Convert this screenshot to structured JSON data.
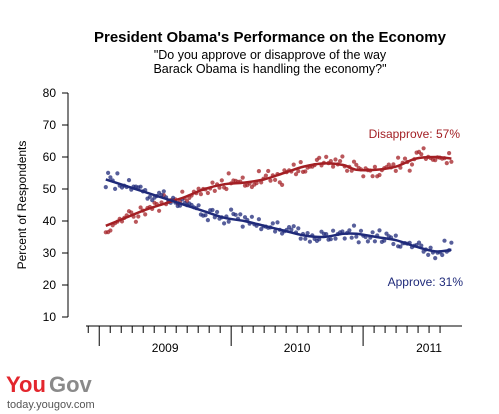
{
  "chart_data": {
    "type": "scatter",
    "title": "President Obama's Performance on the Economy",
    "subtitle_lines": [
      "\"Do you approve or disapprove of the way",
      "Barack Obama is handling the economy?\""
    ],
    "ylabel": "Percent of Respondents",
    "xlabel": "",
    "ylim": [
      10,
      80
    ],
    "yticks": [
      10,
      20,
      30,
      40,
      50,
      60,
      70,
      80
    ],
    "xlim": [
      2008.9,
      2011.75
    ],
    "year_labels": [
      {
        "label": "2009",
        "x": 2009.5
      },
      {
        "label": "2010",
        "x": 2010.5
      },
      {
        "label": "2011",
        "x": 2011.5
      }
    ],
    "year_boundaries": [
      2009.0,
      2010.0,
      2011.0
    ],
    "grid": false,
    "series": [
      {
        "name": "Disapprove",
        "end_label": "Disapprove: 57%",
        "color": "#a31f24",
        "trend": [
          [
            2009.05,
            38.5
          ],
          [
            2009.2,
            41
          ],
          [
            2009.35,
            43.5
          ],
          [
            2009.5,
            45.5
          ],
          [
            2009.65,
            47.5
          ],
          [
            2009.8,
            50
          ],
          [
            2009.95,
            51.5
          ],
          [
            2010.1,
            52
          ],
          [
            2010.25,
            53
          ],
          [
            2010.4,
            55
          ],
          [
            2010.55,
            57
          ],
          [
            2010.7,
            58
          ],
          [
            2010.85,
            57.5
          ],
          [
            2010.95,
            56
          ],
          [
            2011.1,
            56
          ],
          [
            2011.25,
            57
          ],
          [
            2011.4,
            59.5
          ],
          [
            2011.55,
            60
          ],
          [
            2011.67,
            59.5
          ]
        ]
      },
      {
        "name": "Approve",
        "end_label": "Approve: 31%",
        "color": "#1f2a7a",
        "trend": [
          [
            2009.05,
            53
          ],
          [
            2009.2,
            51
          ],
          [
            2009.35,
            49
          ],
          [
            2009.5,
            47
          ],
          [
            2009.65,
            45
          ],
          [
            2009.8,
            43
          ],
          [
            2009.95,
            41
          ],
          [
            2010.1,
            40
          ],
          [
            2010.25,
            38.5
          ],
          [
            2010.4,
            37
          ],
          [
            2010.55,
            35.5
          ],
          [
            2010.7,
            35
          ],
          [
            2010.85,
            36
          ],
          [
            2010.95,
            36
          ],
          [
            2011.1,
            35
          ],
          [
            2011.25,
            34
          ],
          [
            2011.4,
            32
          ],
          [
            2011.55,
            30.5
          ],
          [
            2011.67,
            31
          ]
        ]
      }
    ]
  },
  "footer": {
    "logo_you": "You",
    "logo_gov": "Gov",
    "url": "today.yougov.com"
  },
  "colors": {
    "disapprove": "#a31f24",
    "approve": "#1f2a7a",
    "logo_red": "#e3262d",
    "logo_gray": "#8a8a8a"
  }
}
